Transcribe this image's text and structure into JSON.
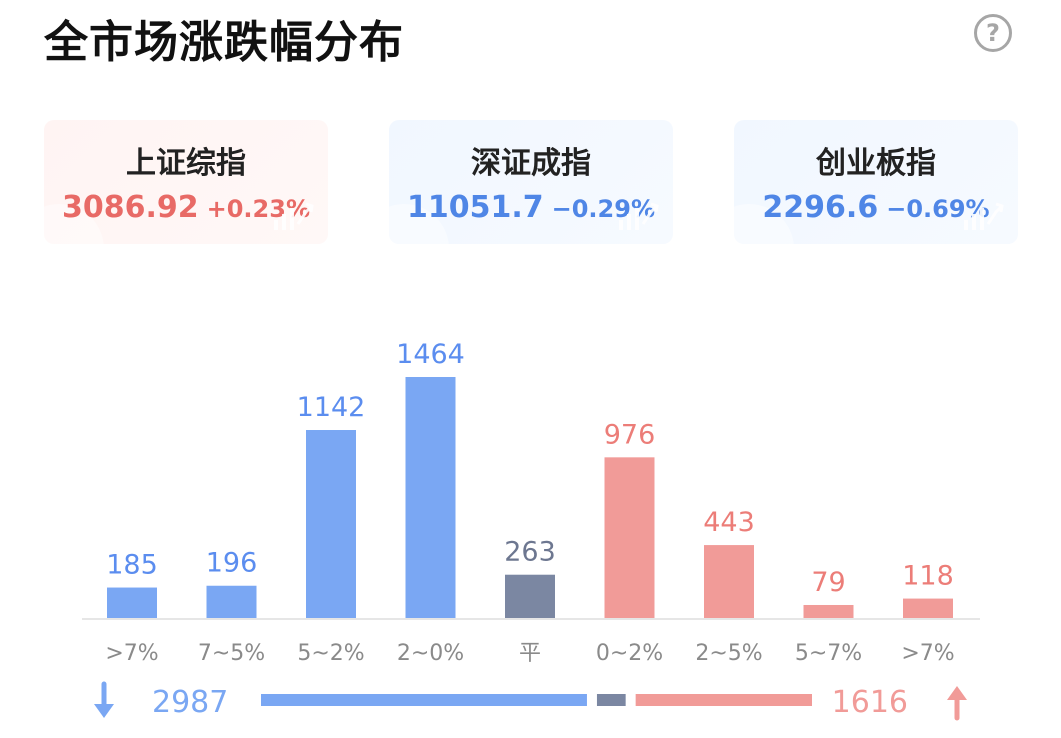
{
  "title": "全市场涨跌幅分布",
  "indices": [
    {
      "name": "上证综指",
      "price": "3086.92",
      "change": "+0.23%",
      "trend": "up"
    },
    {
      "name": "深证成指",
      "price": "11051.7",
      "change": "−0.29%",
      "trend": "down"
    },
    {
      "name": "创业板指",
      "price": "2296.6",
      "change": "−0.69%",
      "trend": "down"
    }
  ],
  "colors": {
    "fall": "#7aa7f3",
    "flat": "#7b87a2",
    "rise": "#f19b98",
    "fall_text": "#5b8def",
    "flat_text": "#6d7790",
    "rise_text": "#ec7d78",
    "axis_label": "#8a8a8a"
  },
  "chart_data": {
    "type": "bar",
    "categories": [
      ">7%",
      "7~5%",
      "5~2%",
      "2~0%",
      "平",
      "0~2%",
      "2~5%",
      "5~7%",
      ">7%"
    ],
    "values": [
      185,
      196,
      1142,
      1464,
      263,
      976,
      443,
      79,
      118
    ],
    "groups": [
      "fall",
      "fall",
      "fall",
      "fall",
      "flat",
      "rise",
      "rise",
      "rise",
      "rise"
    ],
    "ylim": [
      0,
      1464
    ]
  },
  "summary": {
    "fall_count": "2987",
    "rise_count": "1616",
    "flat_count": 263,
    "fall_icon": "arrow-down-icon",
    "rise_icon": "arrow-up-icon"
  }
}
